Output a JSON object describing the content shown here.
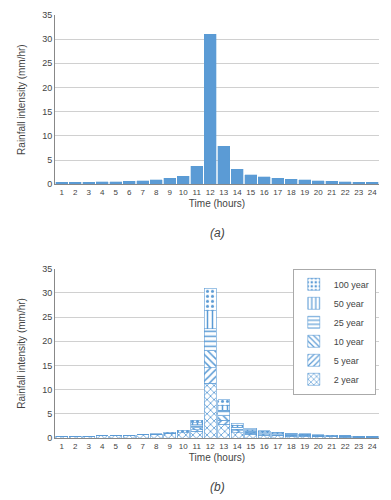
{
  "chart_data": [
    {
      "type": "bar",
      "x": [
        1,
        2,
        3,
        4,
        5,
        6,
        7,
        8,
        9,
        10,
        11,
        12,
        13,
        14,
        15,
        16,
        17,
        18,
        19,
        20,
        21,
        22,
        23,
        24
      ],
      "values": [
        0.4,
        0.4,
        0.4,
        0.5,
        0.5,
        0.6,
        0.7,
        0.9,
        1.2,
        1.6,
        3.7,
        31.0,
        7.9,
        3.1,
        2.0,
        1.5,
        1.2,
        1.0,
        0.9,
        0.7,
        0.6,
        0.5,
        0.4,
        0.4
      ],
      "color": "#5b9bd5",
      "xlabel": "Time (hours)",
      "ylabel": "Rainfall intensity (mm/hr)",
      "xlim": [
        0.5,
        24.5
      ],
      "xticks": [
        1,
        2,
        3,
        4,
        5,
        6,
        7,
        8,
        9,
        10,
        11,
        12,
        13,
        14,
        15,
        16,
        17,
        18,
        19,
        20,
        21,
        22,
        23,
        24
      ],
      "ylim": [
        0,
        35
      ],
      "yticks": [
        0,
        5,
        10,
        15,
        20,
        25,
        30,
        35
      ],
      "grid": true,
      "annotations": [
        "(a)"
      ]
    },
    {
      "type": "bar",
      "stacked": true,
      "x": [
        1,
        2,
        3,
        4,
        5,
        6,
        7,
        8,
        9,
        10,
        11,
        12,
        13,
        14,
        15,
        16,
        17,
        18,
        19,
        20,
        21,
        22,
        23,
        24
      ],
      "series": [
        {
          "name": "2 year",
          "color": "#5b9bd5",
          "values": [
            0.4,
            0.4,
            0.4,
            0.5,
            0.5,
            0.6,
            0.7,
            0.8,
            1.0,
            1.1,
            1.35,
            11.3,
            2.88,
            1.13,
            0.73,
            0.55,
            0.44,
            0.37,
            0.33,
            0.26,
            0.22,
            0.18,
            0.15,
            0.15
          ]
        },
        {
          "name": "5 year",
          "color": "#5b9bd5",
          "values": [
            0,
            0,
            0,
            0,
            0,
            0,
            0,
            0,
            0,
            0,
            0.39,
            3.2,
            0.82,
            0.32,
            0.21,
            0.16,
            0.13,
            0.1,
            0.1,
            0.07,
            0.06,
            0.05,
            0.05,
            0.05
          ]
        },
        {
          "name": "10 year",
          "color": "#5b9bd5",
          "values": [
            0,
            0,
            0,
            0,
            0,
            0,
            0,
            0,
            0,
            0,
            0.43,
            3.6,
            0.93,
            0.36,
            0.23,
            0.17,
            0.14,
            0.11,
            0.11,
            0.08,
            0.07,
            0.06,
            0.05,
            0.05
          ]
        },
        {
          "name": "25 year",
          "color": "#5b9bd5",
          "values": [
            0,
            0,
            0,
            0,
            0,
            0,
            0,
            0,
            0,
            0,
            0.54,
            4.5,
            1.15,
            0.45,
            0.29,
            0.22,
            0.18,
            0.15,
            0.13,
            0.1,
            0.09,
            0.07,
            0.06,
            0.06
          ]
        },
        {
          "name": "50 year",
          "color": "#5b9bd5",
          "values": [
            0,
            0,
            0,
            0,
            0,
            0,
            0,
            0,
            0,
            0,
            0.44,
            3.7,
            0.94,
            0.37,
            0.24,
            0.18,
            0.15,
            0.12,
            0.11,
            0.09,
            0.07,
            0.06,
            0.05,
            0.05
          ]
        },
        {
          "name": "100 year",
          "color": "#5b9bd5",
          "values": [
            0,
            0,
            0,
            0,
            0,
            0,
            0,
            0.1,
            0.2,
            0.5,
            0.55,
            4.7,
            1.18,
            0.47,
            0.3,
            0.22,
            0.16,
            0.15,
            0.12,
            0.1,
            0.09,
            0.08,
            0.04,
            0.04
          ]
        }
      ],
      "xlabel": "Time (hours)",
      "ylabel": "Rainfall intensity (mm/hr)",
      "xlim": [
        0.5,
        24.5
      ],
      "xticks": [
        1,
        2,
        3,
        4,
        5,
        6,
        7,
        8,
        9,
        10,
        11,
        12,
        13,
        14,
        15,
        16,
        17,
        18,
        19,
        20,
        21,
        22,
        23,
        24
      ],
      "ylim": [
        0,
        35
      ],
      "yticks": [
        0,
        5,
        10,
        15,
        20,
        25,
        30,
        35
      ],
      "grid": true,
      "legend": "upper right",
      "annotations": [
        "(b)"
      ]
    }
  ]
}
